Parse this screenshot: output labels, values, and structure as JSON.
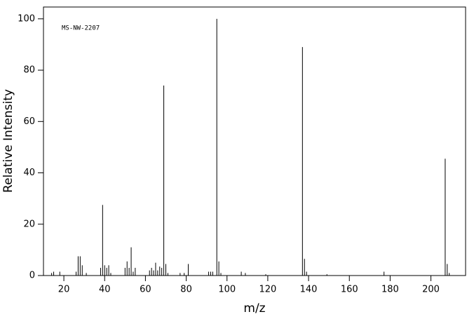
{
  "chart_data": {
    "type": "stem",
    "annotation": "MS-NW-2207",
    "xlabel": "m/z",
    "ylabel": "Relative Intensity",
    "x": [
      14,
      15,
      18,
      26,
      27,
      28,
      29,
      31,
      38,
      39,
      40,
      41,
      42,
      43,
      50,
      51,
      52,
      53,
      54,
      55,
      62,
      63,
      64,
      65,
      66,
      67,
      68,
      69,
      70,
      71,
      77,
      79,
      81,
      91,
      92,
      93,
      95,
      96,
      97,
      107,
      109,
      119,
      137,
      138,
      139,
      149,
      177,
      207,
      208,
      209
    ],
    "values": [
      1,
      1.5,
      1.5,
      1.5,
      7.5,
      7.5,
      4,
      1,
      3,
      27.5,
      4,
      3,
      4,
      1,
      3,
      5.5,
      3,
      11,
      1.5,
      3,
      2,
      3,
      2,
      5,
      2,
      3.5,
      3,
      74,
      4.5,
      1,
      1,
      1,
      4.5,
      1.5,
      1.5,
      1.5,
      100,
      5.5,
      1,
      1.5,
      1,
      0.5,
      89,
      6.5,
      1.5,
      0.5,
      1.5,
      45.5,
      4.5,
      1
    ],
    "color": "#000000",
    "xlim": [
      10,
      217
    ],
    "ylim": [
      0,
      104.6
    ],
    "xticks": [
      20,
      40,
      60,
      80,
      100,
      120,
      140,
      160,
      180,
      200
    ],
    "yticks": [
      0,
      20,
      40,
      60,
      80,
      100
    ]
  }
}
